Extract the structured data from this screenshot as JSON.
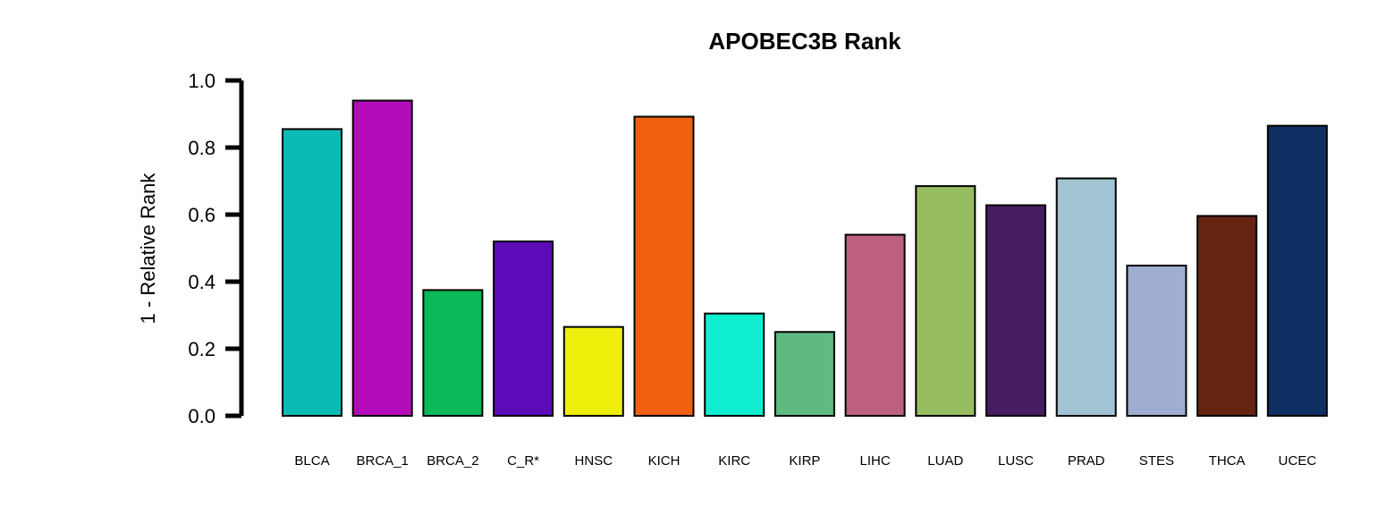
{
  "chart_data": {
    "type": "bar",
    "title": "APOBEC3B Rank",
    "xlabel": "",
    "ylabel": "1 - Relative Rank",
    "ylim": [
      0,
      1
    ],
    "yticks": [
      "0.0",
      "0.2",
      "0.4",
      "0.6",
      "0.8",
      "1.0"
    ],
    "grid": false,
    "legend": "none",
    "categories": [
      "BLCA",
      "BRCA_1",
      "BRCA_2",
      "C_R*",
      "HNSC",
      "KICH",
      "KIRC",
      "KIRP",
      "LIHC",
      "LUAD",
      "LUSC",
      "PRAD",
      "STES",
      "THCA",
      "UCEC"
    ],
    "values": [
      0.855,
      0.94,
      0.375,
      0.52,
      0.265,
      0.892,
      0.305,
      0.25,
      0.54,
      0.685,
      0.628,
      0.708,
      0.448,
      0.596,
      0.865
    ],
    "colors": [
      "#0bbab4",
      "#b40bb9",
      "#0bb958",
      "#5c0bb9",
      "#eeef0b",
      "#f06010",
      "#10eed2",
      "#60ba80",
      "#bd6080",
      "#96bd60",
      "#481c60",
      "#a0c4d4",
      "#9fadd1",
      "#652412",
      "#0f2e62"
    ]
  }
}
